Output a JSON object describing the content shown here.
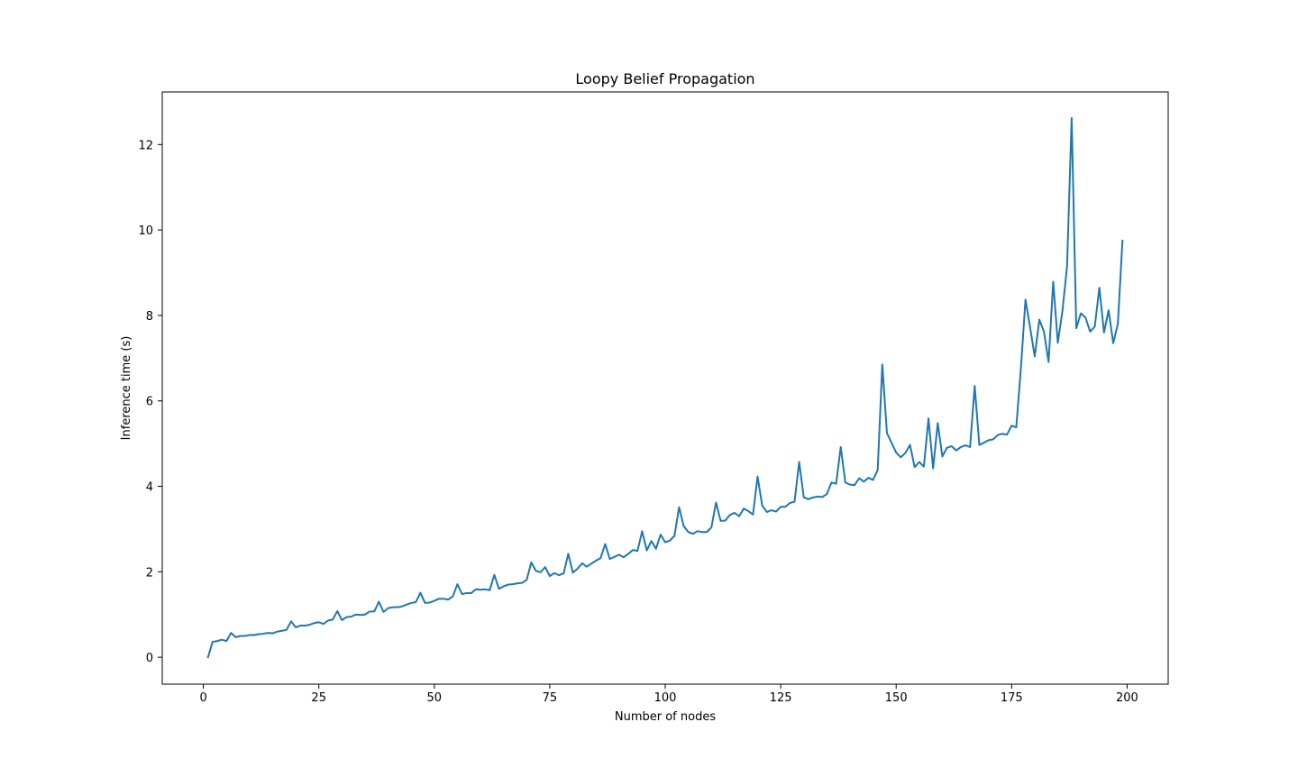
{
  "chart_data": {
    "type": "line",
    "title": "Loopy Belief Propagation",
    "xlabel": "Number of nodes",
    "ylabel": "Inference time (s)",
    "xlim": [
      -8.9,
      208.9
    ],
    "ylim": [
      -0.63,
      13.23
    ],
    "x_ticks": [
      0,
      25,
      50,
      75,
      100,
      125,
      150,
      175,
      200
    ],
    "y_ticks": [
      0,
      2,
      4,
      6,
      8,
      10,
      12
    ],
    "grid": false,
    "series": [
      {
        "color": "#1f77b4",
        "x_start": 1,
        "x_step": 1,
        "values": [
          0.0,
          0.36,
          0.38,
          0.41,
          0.38,
          0.57,
          0.47,
          0.5,
          0.5,
          0.52,
          0.52,
          0.54,
          0.55,
          0.57,
          0.56,
          0.6,
          0.62,
          0.64,
          0.84,
          0.7,
          0.74,
          0.74,
          0.76,
          0.8,
          0.82,
          0.78,
          0.86,
          0.88,
          1.08,
          0.87,
          0.94,
          0.95,
          1.0,
          0.99,
          1.0,
          1.07,
          1.07,
          1.3,
          1.06,
          1.15,
          1.17,
          1.17,
          1.19,
          1.23,
          1.27,
          1.29,
          1.51,
          1.27,
          1.28,
          1.32,
          1.37,
          1.37,
          1.35,
          1.42,
          1.71,
          1.48,
          1.5,
          1.5,
          1.59,
          1.58,
          1.59,
          1.57,
          1.93,
          1.6,
          1.66,
          1.7,
          1.71,
          1.73,
          1.74,
          1.81,
          2.22,
          2.02,
          1.99,
          2.11,
          1.9,
          1.97,
          1.92,
          1.96,
          2.42,
          1.98,
          2.07,
          2.2,
          2.12,
          2.19,
          2.26,
          2.32,
          2.65,
          2.3,
          2.35,
          2.4,
          2.34,
          2.42,
          2.51,
          2.49,
          2.95,
          2.5,
          2.72,
          2.54,
          2.87,
          2.69,
          2.73,
          2.84,
          3.51,
          3.07,
          2.93,
          2.89,
          2.95,
          2.93,
          2.93,
          3.04,
          3.62,
          3.19,
          3.2,
          3.33,
          3.38,
          3.3,
          3.48,
          3.42,
          3.34,
          4.23,
          3.55,
          3.4,
          3.44,
          3.41,
          3.52,
          3.52,
          3.61,
          3.64,
          4.57,
          3.74,
          3.7,
          3.74,
          3.76,
          3.75,
          3.82,
          4.09,
          4.06,
          4.92,
          4.09,
          4.04,
          4.03,
          4.19,
          4.11,
          4.2,
          4.15,
          4.38,
          6.85,
          5.25,
          5.02,
          4.79,
          4.68,
          4.78,
          4.97,
          4.45,
          4.57,
          4.46,
          5.59,
          4.42,
          5.48,
          4.7,
          4.9,
          4.94,
          4.84,
          4.92,
          4.96,
          4.92,
          6.35,
          4.97,
          5.02,
          5.08,
          5.1,
          5.2,
          5.23,
          5.21,
          5.42,
          5.38,
          6.75,
          8.37,
          7.72,
          7.04,
          7.9,
          7.62,
          6.91,
          8.79,
          7.36,
          8.1,
          9.15,
          12.62,
          7.7,
          8.05,
          7.95,
          7.62,
          7.74,
          8.65,
          7.6,
          8.12,
          7.35,
          7.8,
          9.75
        ]
      }
    ]
  }
}
